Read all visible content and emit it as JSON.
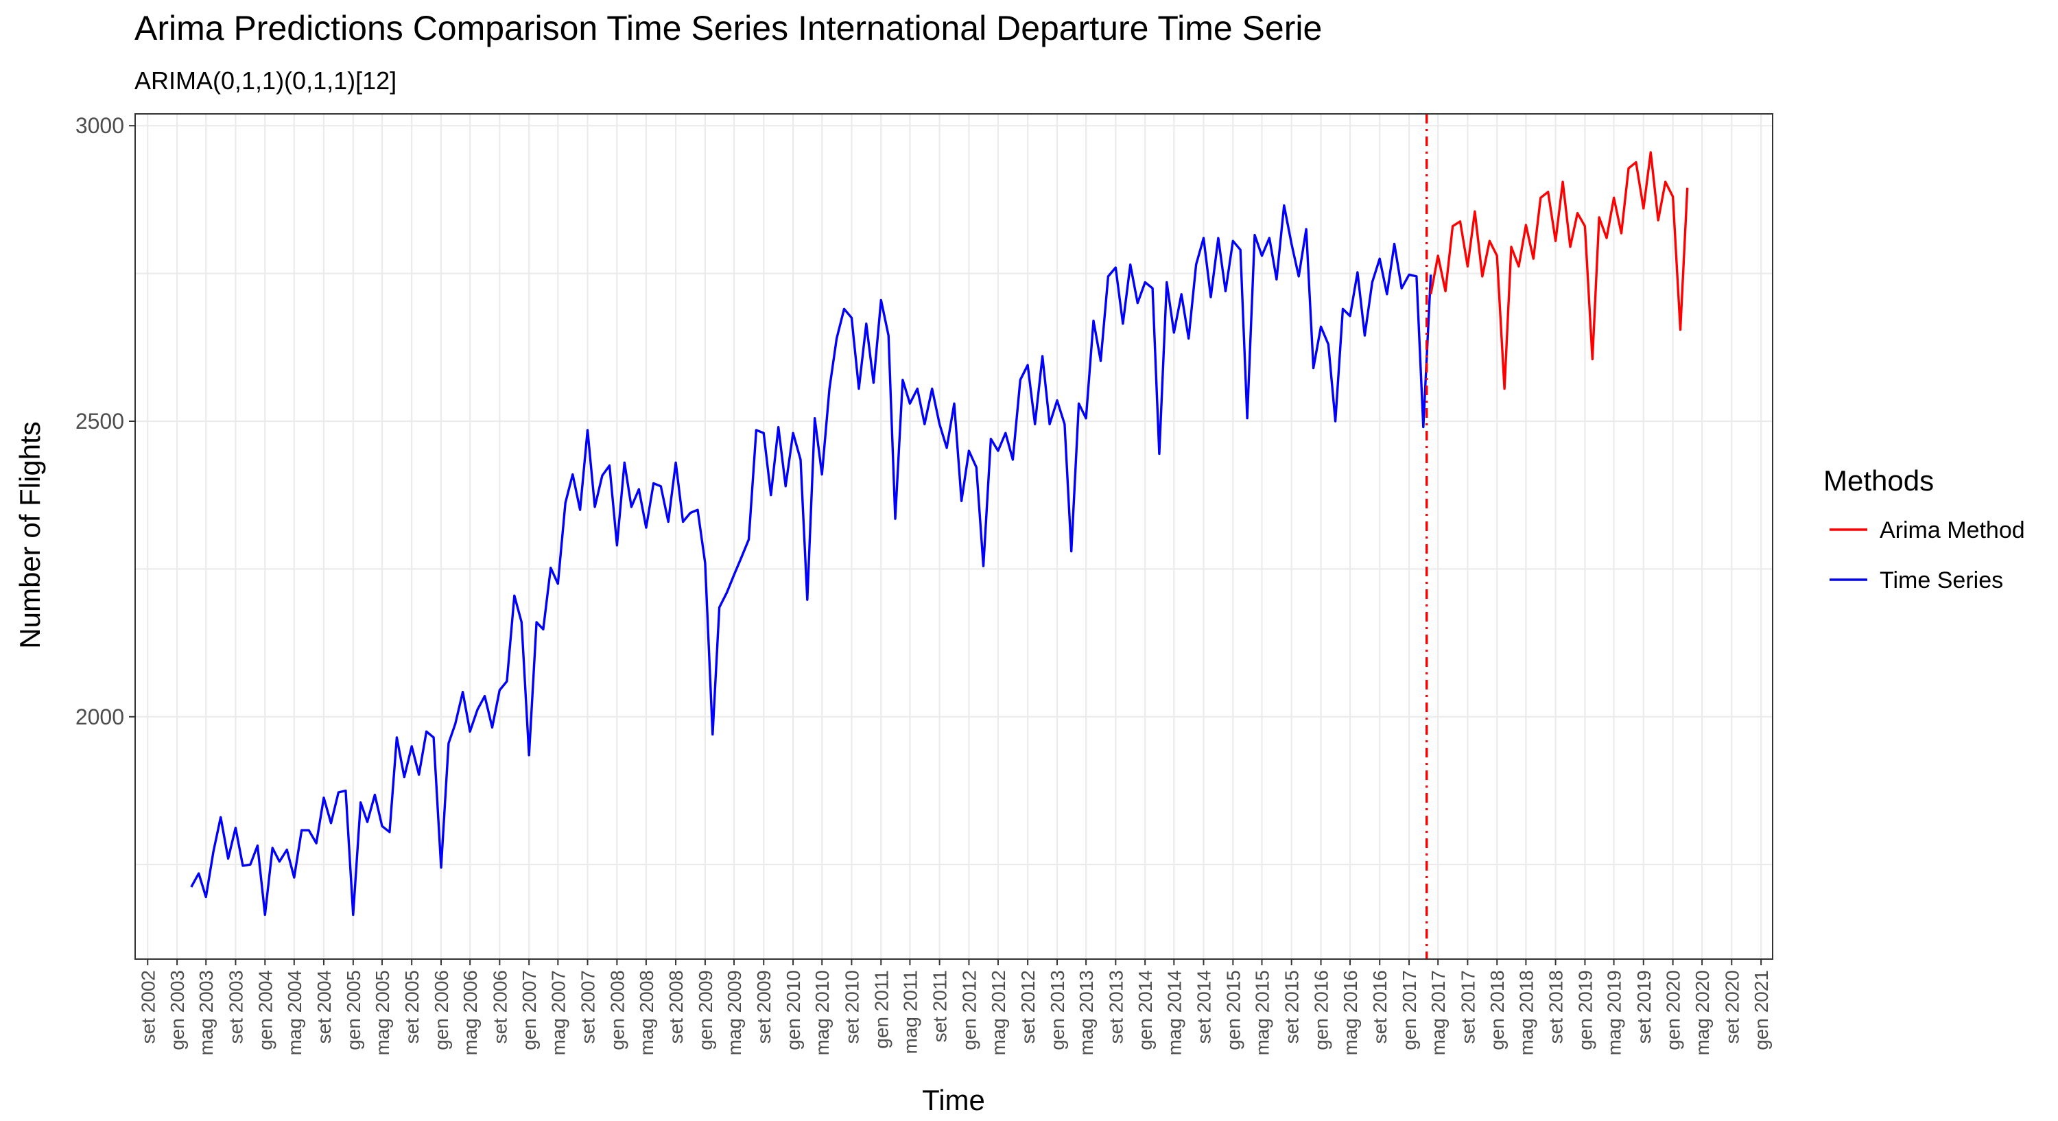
{
  "chart_data": {
    "type": "line",
    "title": "Arima Predictions Comparison Time Series International Departure Time Serie",
    "subtitle": "ARIMA(0,1,1)(0,1,1)[12]",
    "xlabel": "Time",
    "ylabel": "Number of Flights",
    "xlim": [
      "2002-07-11",
      "2021-02-18"
    ],
    "ylim": [
      1590,
      3020
    ],
    "yticks": [
      2000,
      2500,
      3000
    ],
    "xticks": [
      {
        "date": "2002-09-01",
        "label": "set 2002"
      },
      {
        "date": "2003-01-01",
        "label": "gen 2003"
      },
      {
        "date": "2003-05-01",
        "label": "mag 2003"
      },
      {
        "date": "2003-09-01",
        "label": "set 2003"
      },
      {
        "date": "2004-01-01",
        "label": "gen 2004"
      },
      {
        "date": "2004-05-01",
        "label": "mag 2004"
      },
      {
        "date": "2004-09-01",
        "label": "set 2004"
      },
      {
        "date": "2005-01-01",
        "label": "gen 2005"
      },
      {
        "date": "2005-05-01",
        "label": "mag 2005"
      },
      {
        "date": "2005-09-01",
        "label": "set 2005"
      },
      {
        "date": "2006-01-01",
        "label": "gen 2006"
      },
      {
        "date": "2006-05-01",
        "label": "mag 2006"
      },
      {
        "date": "2006-09-01",
        "label": "set 2006"
      },
      {
        "date": "2007-01-01",
        "label": "gen 2007"
      },
      {
        "date": "2007-05-01",
        "label": "mag 2007"
      },
      {
        "date": "2007-09-01",
        "label": "set 2007"
      },
      {
        "date": "2008-01-01",
        "label": "gen 2008"
      },
      {
        "date": "2008-05-01",
        "label": "mag 2008"
      },
      {
        "date": "2008-09-01",
        "label": "set 2008"
      },
      {
        "date": "2009-01-01",
        "label": "gen 2009"
      },
      {
        "date": "2009-05-01",
        "label": "mag 2009"
      },
      {
        "date": "2009-09-01",
        "label": "set 2009"
      },
      {
        "date": "2010-01-01",
        "label": "gen 2010"
      },
      {
        "date": "2010-05-01",
        "label": "mag 2010"
      },
      {
        "date": "2010-09-01",
        "label": "set 2010"
      },
      {
        "date": "2011-01-01",
        "label": "gen 2011"
      },
      {
        "date": "2011-05-01",
        "label": "mag 2011"
      },
      {
        "date": "2011-09-01",
        "label": "set 2011"
      },
      {
        "date": "2012-01-01",
        "label": "gen 2012"
      },
      {
        "date": "2012-05-01",
        "label": "mag 2012"
      },
      {
        "date": "2012-09-01",
        "label": "set 2012"
      },
      {
        "date": "2013-01-01",
        "label": "gen 2013"
      },
      {
        "date": "2013-05-01",
        "label": "mag 2013"
      },
      {
        "date": "2013-09-01",
        "label": "set 2013"
      },
      {
        "date": "2014-01-01",
        "label": "gen 2014"
      },
      {
        "date": "2014-05-01",
        "label": "mag 2014"
      },
      {
        "date": "2014-09-01",
        "label": "set 2014"
      },
      {
        "date": "2015-01-01",
        "label": "gen 2015"
      },
      {
        "date": "2015-05-01",
        "label": "mag 2015"
      },
      {
        "date": "2015-09-01",
        "label": "set 2015"
      },
      {
        "date": "2016-01-01",
        "label": "gen 2016"
      },
      {
        "date": "2016-05-01",
        "label": "mag 2016"
      },
      {
        "date": "2016-09-01",
        "label": "set 2016"
      },
      {
        "date": "2017-01-01",
        "label": "gen 2017"
      },
      {
        "date": "2017-05-01",
        "label": "mag 2017"
      },
      {
        "date": "2017-09-01",
        "label": "set 2017"
      },
      {
        "date": "2018-01-01",
        "label": "gen 2018"
      },
      {
        "date": "2018-05-01",
        "label": "mag 2018"
      },
      {
        "date": "2018-09-01",
        "label": "set 2018"
      },
      {
        "date": "2019-01-01",
        "label": "gen 2019"
      },
      {
        "date": "2019-05-01",
        "label": "mag 2019"
      },
      {
        "date": "2019-09-01",
        "label": "set 2019"
      },
      {
        "date": "2020-01-01",
        "label": "gen 2020"
      },
      {
        "date": "2020-05-01",
        "label": "mag 2020"
      },
      {
        "date": "2020-09-01",
        "label": "set 2020"
      },
      {
        "date": "2021-01-01",
        "label": "gen 2021"
      }
    ],
    "grid": true,
    "legend": {
      "title": "Methods",
      "placement": "right"
    },
    "vline": {
      "x": "2017-03-15",
      "color": "#FF0000",
      "style": "dashdot"
    },
    "series": [
      {
        "name": "Time Series",
        "color": "#0000FF",
        "start": "2003-03",
        "values": [
          1712,
          1735,
          1695,
          1772,
          1830,
          1760,
          1812,
          1748,
          1750,
          1782,
          1665,
          1778,
          1755,
          1775,
          1728,
          1808,
          1808,
          1786,
          1863,
          1820,
          1872,
          1875,
          1665,
          1855,
          1822,
          1868,
          1815,
          1805,
          1965,
          1898,
          1950,
          1902,
          1975,
          1965,
          1745,
          1955,
          1988,
          2042,
          1975,
          2012,
          2035,
          1982,
          2045,
          2060,
          2205,
          2160,
          1935,
          2160,
          2148,
          2252,
          2225,
          2362,
          2410,
          2350,
          2485,
          2355,
          2408,
          2425,
          2290,
          2430,
          2355,
          2385,
          2320,
          2395,
          2390,
          2330,
          2430,
          2330,
          2345,
          2350,
          2260,
          1970,
          2185,
          2210,
          2240,
          2270,
          2300,
          2485,
          2480,
          2375,
          2490,
          2390,
          2480,
          2435,
          2198,
          2505,
          2410,
          2555,
          2640,
          2690,
          2675,
          2555,
          2665,
          2565,
          2705,
          2645,
          2335,
          2570,
          2530,
          2555,
          2495,
          2555,
          2495,
          2455,
          2530,
          2365,
          2450,
          2422,
          2255,
          2470,
          2450,
          2480,
          2435,
          2570,
          2595,
          2495,
          2610,
          2495,
          2535,
          2495,
          2280,
          2530,
          2505,
          2670,
          2602,
          2745,
          2760,
          2665,
          2765,
          2700,
          2735,
          2725,
          2445,
          2735,
          2650,
          2715,
          2640,
          2765,
          2810,
          2710,
          2810,
          2720,
          2805,
          2790,
          2505,
          2815,
          2780,
          2810,
          2740,
          2865,
          2800,
          2745,
          2825,
          2590,
          2660,
          2630,
          2500,
          2690,
          2678,
          2752,
          2645,
          2735,
          2775,
          2715,
          2800,
          2725,
          2748,
          2745,
          2490,
          2748
        ]
      },
      {
        "name": "Arima Method",
        "color": "#FF0000",
        "start": "2017-04",
        "values": [
          2715,
          2780,
          2720,
          2830,
          2838,
          2762,
          2855,
          2745,
          2805,
          2780,
          2555,
          2795,
          2762,
          2832,
          2775,
          2878,
          2888,
          2805,
          2905,
          2795,
          2852,
          2830,
          2605,
          2845,
          2810,
          2878,
          2818,
          2928,
          2938,
          2860,
          2955,
          2840,
          2905,
          2880,
          2655,
          2895
        ]
      }
    ]
  }
}
